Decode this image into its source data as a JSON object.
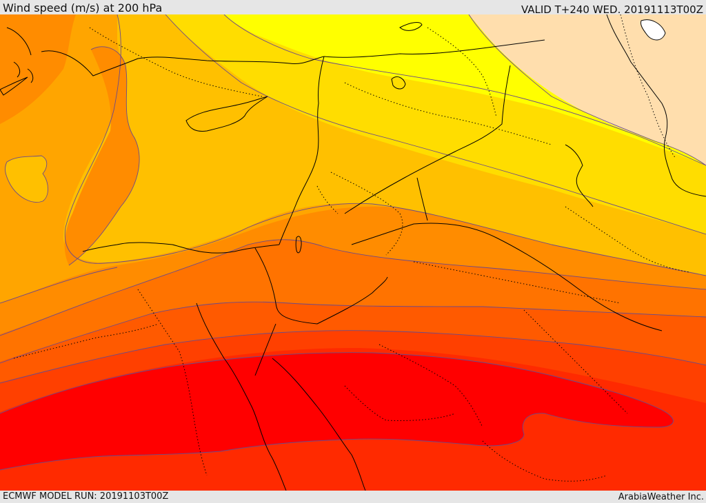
{
  "header": {
    "title": "Wind speed (m/s) at 200 hPa",
    "valid": "VALID T+240 WED. 20191113T00Z"
  },
  "footer": {
    "model_run": "ECMWF MODEL RUN: 20191103T00Z",
    "credit": "ArabiaWeather Inc."
  },
  "map": {
    "variable": "wind speed",
    "units": "m/s",
    "level": "200 hPa",
    "palette": {
      "light": "#ffdead",
      "yellow": "#ffff00",
      "gold": "#ffdd00",
      "amber": "#ffc000",
      "orange_light": "#ffa500",
      "orange": "#ff8c00",
      "orange_dark": "#ff7300",
      "red_orange": "#ff5a00",
      "red_dark_orange": "#ff4000",
      "orange_red": "#ff2a00",
      "red": "#ff0000"
    }
  }
}
